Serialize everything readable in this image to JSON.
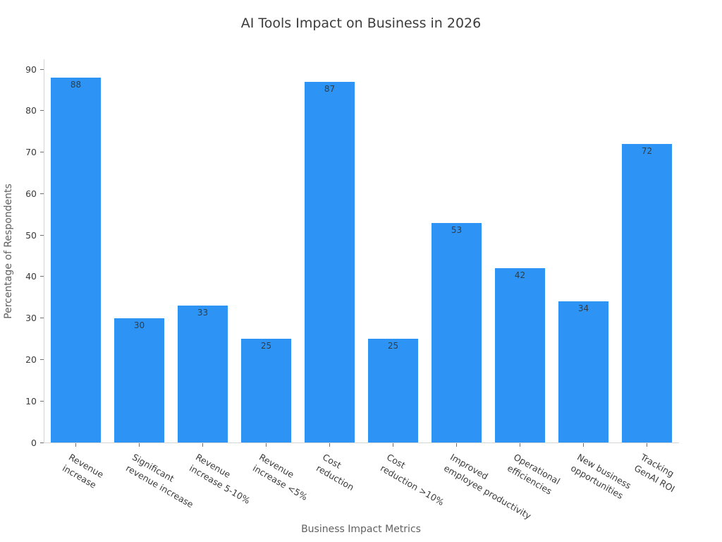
{
  "chart_data": {
    "type": "bar",
    "title": "AI Tools Impact on Business in 2026",
    "xlabel": "Business Impact Metrics",
    "ylabel": "Percentage of Respondents",
    "categories": [
      "Revenue increase",
      "Significant revenue increase",
      "Revenue increase 5-10%",
      "Revenue increase <5%",
      "Cost reduction",
      "Cost reduction >10%",
      "Improved employee productivity",
      "Operational efficiencies",
      "New business opportunities",
      "Tracking GenAI ROI"
    ],
    "tick_label_lines": [
      [
        "Revenue",
        "increase"
      ],
      [
        "Significant",
        "revenue increase"
      ],
      [
        "Revenue",
        "increase 5-10%"
      ],
      [
        "Revenue",
        "increase <5%"
      ],
      [
        "Cost",
        "reduction"
      ],
      [
        "Cost",
        "reduction >10%"
      ],
      [
        "Improved",
        "employee productivity"
      ],
      [
        "Operational",
        "efficiencies"
      ],
      [
        "New business",
        "opportunities"
      ],
      [
        "Tracking",
        "GenAI ROI"
      ]
    ],
    "values": [
      88,
      30,
      33,
      25,
      87,
      25,
      53,
      42,
      34,
      72
    ],
    "yticks": [
      0,
      10,
      20,
      30,
      40,
      50,
      60,
      70,
      80,
      90
    ],
    "ylim": [
      0,
      90
    ],
    "grid": false,
    "legend": "none",
    "value_labels_shown": true,
    "colors": {
      "bar": "#2D94F5",
      "spine": "#d6d6d6",
      "tick_mark": "#6f6f6f",
      "tick_text": "#3b3b3b",
      "value_text": "#333b41",
      "axis_label_text": "#616161",
      "title_text": "#3c3c3c",
      "background": "#ffffff"
    }
  }
}
